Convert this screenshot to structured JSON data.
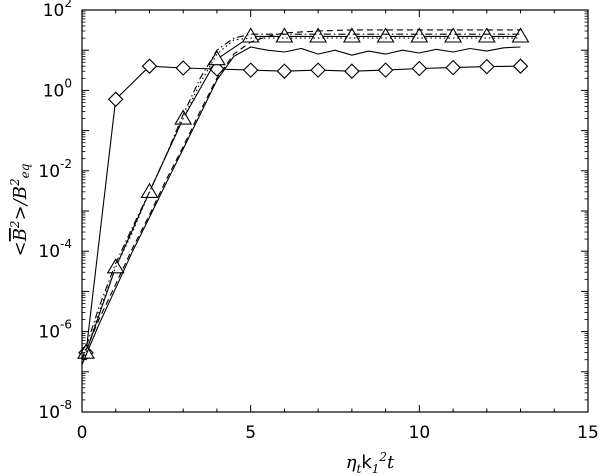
{
  "chart_data": {
    "type": "line",
    "title": "",
    "xlabel": {
      "pre": "η",
      "sub1": "t",
      "mid": "k",
      "sub2": "1",
      "sup": "2",
      "post": "t"
    },
    "ylabel": {
      "pre": "<",
      "bar_sym": "B",
      "sup1": "2",
      "post": ">/",
      "sym2": "B",
      "sup2": "2",
      "sub2": "eq"
    },
    "xlim": [
      0,
      15
    ],
    "ylim_log10": [
      -8,
      2
    ],
    "y_scale": "log",
    "grid": false,
    "legend": "none",
    "x_tick_labels": [
      "0",
      "5",
      "10",
      "15"
    ],
    "y_tick_labels": [
      {
        "base": "10",
        "exp": "-8"
      },
      {
        "base": "10",
        "exp": "-6"
      },
      {
        "base": "10",
        "exp": "-4"
      },
      {
        "base": "10",
        "exp": "-2"
      },
      {
        "base": "10",
        "exp": "0"
      },
      {
        "base": "10",
        "exp": "2"
      }
    ],
    "series": [
      {
        "style": "solid",
        "marker": "diamond",
        "x": [
          0,
          0.12,
          1.0,
          2.0,
          3.0,
          4.0,
          5.0,
          6.0,
          7.0,
          8.0,
          9.0,
          10.0,
          11.0,
          12.0,
          13.0
        ],
        "y": [
          3e-07,
          3e-07,
          0.6,
          4,
          3.6,
          3.4,
          3.2,
          3.0,
          3.2,
          3.0,
          3.2,
          3.5,
          3.7,
          3.9,
          4.0
        ]
      },
      {
        "style": "solid",
        "marker": "triangle",
        "x": [
          0,
          0.12,
          1.0,
          2.0,
          3.0,
          4.0,
          5.0,
          6.0,
          7.0,
          8.0,
          9.0,
          10.0,
          11.0,
          12.0,
          13.0
        ],
        "y": [
          3e-07,
          3e-07,
          4e-05,
          0.003,
          0.2,
          6,
          22,
          22,
          22,
          22,
          22,
          22,
          22,
          22,
          22
        ]
      },
      {
        "style": "dotted",
        "marker": "none",
        "x": [
          0,
          0.5,
          1,
          1.5,
          2,
          2.5,
          3,
          3.5,
          4,
          4.5,
          5,
          6,
          7,
          8,
          9,
          10,
          11,
          12,
          13
        ],
        "y": [
          1.5e-07,
          3e-06,
          4e-05,
          0.0003,
          0.003,
          0.025,
          0.2,
          1.5,
          8,
          18,
          20,
          20,
          20,
          20,
          20,
          20,
          20,
          20,
          20
        ]
      },
      {
        "style": "dashdot",
        "marker": "none",
        "x": [
          0,
          0.5,
          1,
          1.5,
          2,
          2.5,
          3,
          3.5,
          4,
          4.5,
          5,
          6,
          7,
          8,
          9,
          10,
          11,
          12,
          13
        ],
        "y": [
          2e-07,
          4e-06,
          5e-05,
          0.0004,
          0.003,
          0.025,
          0.25,
          2,
          10,
          20,
          25,
          25,
          25,
          25,
          25,
          25,
          25,
          25,
          25
        ]
      },
      {
        "style": "dashed",
        "marker": "none",
        "x": [
          0,
          0.5,
          1,
          1.5,
          2,
          2.5,
          3,
          3.5,
          4,
          4.5,
          5,
          5.5,
          6,
          7,
          8,
          9,
          10,
          11,
          12,
          13
        ],
        "y": [
          2e-07,
          2e-06,
          1.5e-05,
          0.00012,
          0.0008,
          0.006,
          0.04,
          0.3,
          2,
          8,
          16,
          22,
          27,
          30,
          32,
          32,
          32,
          32,
          32,
          32
        ]
      },
      {
        "style": "solid",
        "marker": "none",
        "x": [
          0,
          0.5,
          1,
          1.5,
          2,
          2.5,
          3,
          3.5,
          4,
          4.5,
          5,
          5.5,
          6,
          6.5,
          7,
          7.5,
          8,
          8.5,
          9,
          9.5,
          10,
          10.5,
          11,
          11.5,
          12,
          12.5,
          13
        ],
        "y": [
          1.5e-07,
          1.5e-06,
          1.2e-05,
          0.0001,
          0.0007,
          0.005,
          0.035,
          0.25,
          1.8,
          7,
          12,
          10,
          9,
          11,
          8,
          10,
          7.5,
          9.5,
          8,
          10,
          8.5,
          10.5,
          9,
          11,
          9.5,
          11.5,
          12
        ]
      }
    ]
  }
}
